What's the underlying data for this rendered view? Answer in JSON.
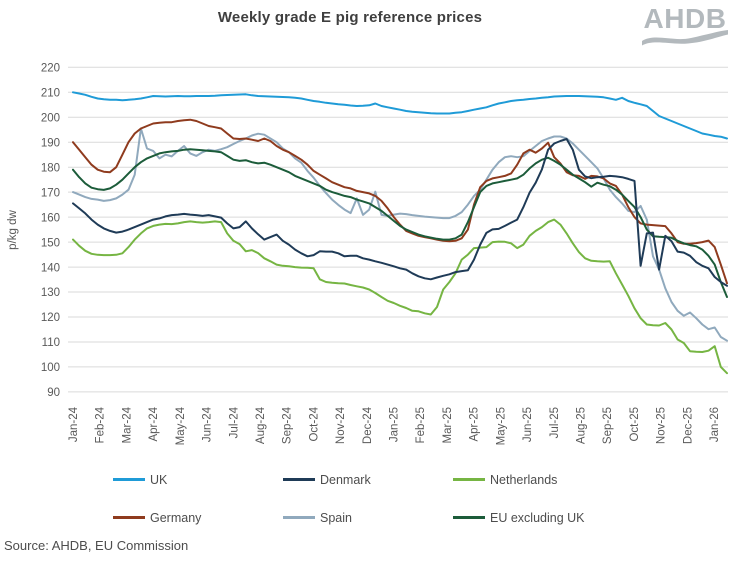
{
  "header": {
    "title": "Weekly grade E pig reference prices",
    "logo_text": "AHDB"
  },
  "source_note": "Source: AHDB, EU Commission",
  "colors": {
    "grid": "#dadada",
    "axis_text": "#595959",
    "title_text": "#3f3f3f",
    "legend_text": "#4d4d4d",
    "logo_gray": "#b3b9bd",
    "background": "#ffffff"
  },
  "chart_data": {
    "type": "line",
    "title": "Weekly grade E pig reference prices",
    "xlabel": "",
    "ylabel": "p/kg dw",
    "ylim": [
      90,
      220
    ],
    "ytick_step": 10,
    "grid": "horizontal",
    "legend_position": "bottom",
    "x_unit": "week",
    "x_tick_labels": [
      "Jan-24",
      "Feb-24",
      "Mar-24",
      "Apr-24",
      "May-24",
      "Jun-24",
      "Jul-24",
      "Aug-24",
      "Sep-24",
      "Oct-24",
      "Nov-24",
      "Dec-24",
      "Jan-25",
      "Feb-25",
      "Mar-25",
      "Apr-25",
      "May-25",
      "Jun-25",
      "Jul-25",
      "Aug-25",
      "Sep-25",
      "Oct-25",
      "Nov-25",
      "Dec-25",
      "Jan-26"
    ],
    "series": [
      {
        "name": "UK",
        "color": "#1f9bd7",
        "values": [
          210,
          209.5,
          209,
          208.2,
          207.5,
          207.2,
          207,
          207,
          206.8,
          207,
          207.2,
          207.5,
          208,
          208.5,
          208.4,
          208.3,
          208.4,
          208.5,
          208.4,
          208.4,
          208.5,
          208.5,
          208.5,
          208.6,
          208.8,
          208.9,
          209,
          209.1,
          209.2,
          208.8,
          208.5,
          208.4,
          208.3,
          208.2,
          208.1,
          208,
          207.8,
          207.5,
          207,
          206.5,
          206.2,
          205.8,
          205.5,
          205.2,
          205,
          204.7,
          204.5,
          204.6,
          204.8,
          205.5,
          204.5,
          204,
          203.5,
          203,
          202.5,
          202.2,
          202,
          201.8,
          201.6,
          201.5,
          201.5,
          201.5,
          201.8,
          202,
          202.5,
          203,
          203.5,
          204,
          204.8,
          205.5,
          206,
          206.5,
          206.8,
          207,
          207.3,
          207.5,
          207.8,
          208,
          208.3,
          208.4,
          208.5,
          208.5,
          208.5,
          208.4,
          208.3,
          208.2,
          208,
          207.5,
          207,
          207.8,
          206.5,
          205.8,
          205.2,
          204.5,
          202.5,
          200.5,
          199.5,
          198.5,
          197.5,
          196.5,
          195.5,
          194.5,
          193.5,
          193,
          192.5,
          192.2,
          191.5
        ]
      },
      {
        "name": "Denmark",
        "color": "#1f3b57",
        "values": [
          165.5,
          163.5,
          161.5,
          159,
          157,
          155.5,
          154.5,
          153.8,
          154.2,
          155,
          156,
          157,
          158,
          159,
          159.5,
          160.3,
          160.8,
          161,
          161.3,
          161,
          160.8,
          160.5,
          160.8,
          160.3,
          159.8,
          157.5,
          155.5,
          156,
          158.3,
          155.5,
          153.1,
          151,
          152,
          153,
          150.5,
          149,
          147,
          145.5,
          144.3,
          144.8,
          146.3,
          146.2,
          146.2,
          145.5,
          144.3,
          144.5,
          144.5,
          143.5,
          143,
          142.3,
          141.7,
          141,
          140.3,
          139.5,
          139,
          137.5,
          136.3,
          135.5,
          135.1,
          135.8,
          136.5,
          137.1,
          138,
          138.4,
          138.7,
          143,
          149,
          153.7,
          155.1,
          155.3,
          156.5,
          157.8,
          159,
          164,
          169.8,
          173.8,
          179.1,
          187,
          189.5,
          190.5,
          191.3,
          187,
          179,
          176.3,
          175.6,
          176,
          176.2,
          176.5,
          176.3,
          176,
          175.3,
          174.5,
          140.5,
          153.5,
          153.8,
          139,
          152.5,
          150.3,
          146.2,
          145.8,
          144.5,
          142,
          140.5,
          139.5,
          136,
          134,
          132.5
        ]
      },
      {
        "name": "Netherlands",
        "color": "#76b543",
        "values": [
          151,
          148.5,
          146.5,
          145.3,
          144.9,
          144.8,
          144.8,
          144.9,
          145.5,
          148,
          151,
          153.5,
          155.5,
          156.5,
          157,
          157.3,
          157.2,
          157.5,
          158,
          158.3,
          158,
          157.8,
          158,
          158.3,
          158,
          153.5,
          150.5,
          149.2,
          146.3,
          146.8,
          145.6,
          143.5,
          142.3,
          141,
          140.5,
          140.3,
          140,
          139.8,
          139.7,
          139.5,
          135.1,
          134,
          133.7,
          133.5,
          133.4,
          132.8,
          132.3,
          131.8,
          131,
          129.6,
          128,
          126.5,
          125.6,
          124.5,
          123.6,
          122.5,
          122.3,
          121.5,
          121,
          124,
          131,
          134,
          137.5,
          143,
          145,
          147.6,
          147.8,
          148,
          150,
          150.2,
          150.1,
          149.5,
          147.6,
          149,
          152.5,
          154.5,
          156,
          158,
          159,
          157,
          153.5,
          149.5,
          146,
          143.5,
          142.5,
          142.3,
          142.2,
          142.3,
          137.5,
          133,
          128.5,
          123.5,
          119.5,
          117,
          116.7,
          116.6,
          117.6,
          115,
          111,
          109.6,
          106.3,
          106.1,
          106,
          106.5,
          108.3,
          100,
          97.5
        ]
      },
      {
        "name": "Germany",
        "color": "#8f3b1e",
        "values": [
          190,
          187,
          184,
          181,
          179,
          178.2,
          178,
          180,
          185,
          190,
          193.5,
          195.5,
          196.5,
          197.5,
          197.8,
          198,
          198,
          198.5,
          198.8,
          199,
          198.5,
          197.5,
          196.5,
          196,
          195.5,
          193.5,
          191.5,
          191.3,
          191.5,
          191,
          190.5,
          191.5,
          190.5,
          188.5,
          187,
          186,
          184.5,
          183,
          181,
          178.5,
          177,
          175.5,
          174,
          173,
          172,
          171.5,
          170.5,
          170,
          169.5,
          168.5,
          166.5,
          163.5,
          160,
          157,
          154.5,
          153.5,
          152.5,
          152,
          151.5,
          151,
          150.5,
          150.3,
          150.5,
          151.5,
          155,
          165,
          172,
          174.5,
          175.5,
          176,
          176.5,
          177.5,
          181,
          185.5,
          187,
          185.8,
          187.5,
          189.8,
          184,
          181.5,
          178,
          176.8,
          176.5,
          175.3,
          176.5,
          176.3,
          175.5,
          173.5,
          172.5,
          169,
          164,
          160,
          157.5,
          157,
          156.8,
          156.6,
          156.4,
          153.5,
          150,
          149.3,
          149.3,
          149.6,
          150,
          150.6,
          148,
          141,
          133.5
        ]
      },
      {
        "name": "Spain",
        "color": "#90a9bd",
        "values": [
          170,
          169,
          168,
          167.3,
          167,
          166.5,
          166.8,
          167.5,
          169,
          171,
          177,
          195.5,
          187.5,
          186.5,
          183.5,
          185,
          184.3,
          186.5,
          188.5,
          185.5,
          184.5,
          186,
          187,
          186.5,
          187.2,
          188,
          189.3,
          190.5,
          191.5,
          192.7,
          193.4,
          193,
          191.5,
          190,
          187.5,
          186,
          183.5,
          181.8,
          178.5,
          175.8,
          172.5,
          169.6,
          167,
          164.9,
          163,
          161.6,
          167.5,
          160.9,
          163,
          170.2,
          160.9,
          160.5,
          161,
          161.4,
          161.2,
          160.8,
          160.5,
          160.2,
          160,
          159.8,
          159.6,
          159.6,
          160.5,
          162,
          165,
          168.5,
          171,
          175,
          179,
          182,
          184,
          184.4,
          184,
          184.4,
          186.5,
          188.5,
          190.5,
          191.5,
          192.3,
          192.3,
          191.5,
          189.5,
          187,
          184.5,
          182,
          179.5,
          175.5,
          171,
          168,
          165.5,
          162.5,
          162,
          164.5,
          159,
          144.3,
          139,
          131.5,
          126,
          122.5,
          120.5,
          121.8,
          119.5,
          117,
          115.1,
          115.8,
          112,
          110.5
        ]
      },
      {
        "name": "EU excluding UK",
        "color": "#1c5c3a",
        "values": [
          179,
          176,
          173.5,
          171.8,
          171.2,
          170.9,
          171.5,
          173,
          175,
          177.5,
          180,
          182,
          183.5,
          184.5,
          185.5,
          186,
          186.3,
          186.5,
          187,
          187.2,
          187,
          186.8,
          186.5,
          186.3,
          186,
          184.5,
          183,
          182.5,
          182.8,
          182,
          181.5,
          181.8,
          181,
          180,
          179,
          178,
          176.5,
          175.5,
          174.5,
          173.5,
          172.5,
          171,
          170,
          169.3,
          168.5,
          168,
          167,
          166.3,
          165.5,
          164,
          162.5,
          160.5,
          158.5,
          156.5,
          155,
          154,
          153,
          152.3,
          151.8,
          151.3,
          151,
          151,
          151.5,
          153,
          158,
          164,
          170,
          172.5,
          173.5,
          174,
          174.5,
          175,
          175.5,
          177,
          179.5,
          181.5,
          183,
          183.8,
          182.5,
          181,
          179,
          177,
          175.5,
          174,
          172.2,
          173.8,
          173,
          172.4,
          171,
          169,
          166.5,
          164,
          160,
          155,
          152.3,
          152.1,
          152,
          151.7,
          150.5,
          149.5,
          148.8,
          148.3,
          147,
          144.5,
          141,
          134,
          128
        ]
      }
    ]
  }
}
